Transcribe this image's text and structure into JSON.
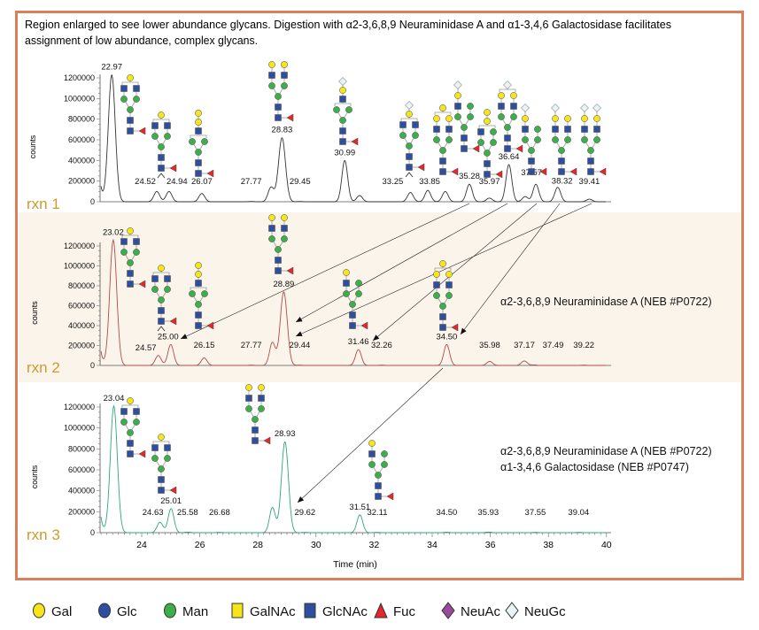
{
  "caption": {
    "line1": "Region enlarged to see lower abundance glycans. Digestion with α2-3,6,8,9 Neuraminidase A and α1-3,4,6 Galactosidase facilitates",
    "line2": "assignment of low abundance, complex glycans."
  },
  "colors": {
    "frame": "#d9805a",
    "rxn_label": "#cf9a2c",
    "panel2_bg": "#faf4ea"
  },
  "symbols": {
    "Gal": {
      "shape": "circle",
      "color": "#f7e51a"
    },
    "Glc": {
      "shape": "circle",
      "color": "#2e4ea0"
    },
    "Man": {
      "shape": "circle",
      "color": "#3cae4a"
    },
    "GalNAc": {
      "shape": "square",
      "color": "#f7e51a"
    },
    "GlcNAc": {
      "shape": "square",
      "color": "#2e4ea0"
    },
    "Fuc": {
      "shape": "triangle",
      "color": "#e8262a"
    },
    "NeuAc": {
      "shape": "diamond",
      "color": "#9a4a9a"
    },
    "NeuGc": {
      "shape": "diamond",
      "color": "#e8f4f6"
    }
  },
  "legend": [
    {
      "label": "Gal",
      "symbol": "Gal"
    },
    {
      "label": "Glc",
      "symbol": "Glc"
    },
    {
      "label": "Man",
      "symbol": "Man"
    },
    {
      "label": "GalNAc",
      "symbol": "GalNAc"
    },
    {
      "label": "GlcNAc",
      "symbol": "GlcNAc"
    },
    {
      "label": "Fuc",
      "symbol": "Fuc"
    },
    {
      "label": "NeuAc",
      "symbol": "NeuAc"
    },
    {
      "label": "NeuGc",
      "symbol": "NeuGc"
    }
  ],
  "xaxis": {
    "label": "Time (min)",
    "ticks": [
      "24",
      "26",
      "28",
      "30",
      "32",
      "34",
      "36",
      "38",
      "40"
    ]
  },
  "chart_data": [
    {
      "type": "line",
      "panel": "rxn 1",
      "color": "#333333",
      "ylabel": "counts",
      "ylim": [
        0,
        1200000
      ],
      "xlim": [
        22.6,
        40
      ],
      "yticks": [
        "0",
        "200000",
        "400000",
        "600000",
        "800000",
        "1000000",
        "1200000"
      ],
      "annotation": [],
      "peaks": [
        {
          "rt": 22.97,
          "label": "22.97",
          "height": 1230000
        },
        {
          "rt": 24.52,
          "label": "24.52",
          "height": 100000
        },
        {
          "rt": 24.94,
          "label": "24.94",
          "height": 100000
        },
        {
          "rt": 26.07,
          "label": "26.07",
          "height": 80000
        },
        {
          "rt": 27.77,
          "label": "27.77",
          "height": 3000
        },
        {
          "rt": 28.45,
          "label": null,
          "height": 140000
        },
        {
          "rt": 28.83,
          "label": "28.83",
          "height": 620000
        },
        {
          "rt": 29.45,
          "label": "29.45",
          "height": 3000
        },
        {
          "rt": 30.99,
          "label": "30.99",
          "height": 400000
        },
        {
          "rt": 31.5,
          "label": null,
          "height": 60000
        },
        {
          "rt": 33.25,
          "label": "33.25",
          "height": 90000
        },
        {
          "rt": 33.85,
          "label": "33.85",
          "height": 110000
        },
        {
          "rt": 34.45,
          "label": null,
          "height": 100000
        },
        {
          "rt": 35.28,
          "label": "35.28",
          "height": 170000
        },
        {
          "rt": 35.97,
          "label": "35.97",
          "height": 35000
        },
        {
          "rt": 36.64,
          "label": "36.64",
          "height": 360000
        },
        {
          "rt": 37.2,
          "label": null,
          "height": 50000
        },
        {
          "rt": 37.57,
          "label": "37.57",
          "height": 170000
        },
        {
          "rt": 38.32,
          "label": "38.32",
          "height": 140000
        },
        {
          "rt": 39.41,
          "label": "39.41",
          "height": 25000
        }
      ],
      "glycans": [
        {
          "peak": "22.97",
          "core_fuc": true,
          "antennae": [
            [
              "GlcNAc"
            ],
            [
              "GlcNAc"
            ]
          ],
          "floating": [
            "Gal"
          ]
        },
        {
          "peak": "24.94",
          "core_fuc": true,
          "antennae": [
            [
              "GlcNAc"
            ],
            [
              "GlcNAc"
            ]
          ],
          "floating": [
            "Gal"
          ],
          "isomer": true
        },
        {
          "peak": "26.07",
          "core_fuc": true,
          "antennae": [
            [],
            []
          ],
          "floating": [
            "GlcNAc",
            "Gal",
            "Gal"
          ]
        },
        {
          "peak": "28.83",
          "core_fuc": true,
          "antennae": [
            [
              "GlcNAc",
              "Gal"
            ],
            [
              "GlcNAc",
              "Gal"
            ]
          ],
          "floating": []
        },
        {
          "peak": "30.99",
          "core_fuc": true,
          "antennae": [
            [],
            []
          ],
          "floating": [
            "GlcNAc",
            "Gal",
            "NeuGc"
          ]
        },
        {
          "peak": "33.25",
          "core_fuc": true,
          "antennae": [
            [
              "GlcNAc"
            ],
            [
              "GlcNAc"
            ]
          ],
          "floating": [
            "Gal",
            "NeuGc"
          ],
          "isomer": true
        },
        {
          "peak": "33.85",
          "core_fuc": true,
          "antennae": [
            [
              "GlcNAc",
              "Gal"
            ],
            [
              "GlcNAc",
              "Gal"
            ]
          ],
          "floating": [
            "Gal"
          ]
        },
        {
          "peak": "35.28",
          "core_fuc": true,
          "antennae": [
            [
              "GlcNAc",
              "Gal",
              "NeuGc"
            ],
            [
              "Man"
            ]
          ],
          "floating": []
        },
        {
          "peak": "35.97",
          "core_fuc": true,
          "antennae": [
            [
              "GlcNAc"
            ],
            [
              "Man"
            ]
          ],
          "floating": [
            "Gal",
            "Gal"
          ]
        },
        {
          "peak": "36.64",
          "core_fuc": true,
          "antennae": [
            [
              "GlcNAc",
              "Gal"
            ],
            [
              "GlcNAc",
              "Gal"
            ]
          ],
          "floating": [
            "NeuGc"
          ]
        },
        {
          "peak": "37.57",
          "core_fuc": true,
          "antennae": [
            [
              "GlcNAc",
              "Gal",
              "NeuGc"
            ],
            [
              "Man"
            ]
          ],
          "floating": []
        },
        {
          "peak": "38.32",
          "core_fuc": true,
          "antennae": [
            [
              "GlcNAc",
              "Gal",
              "NeuGc"
            ],
            [
              "GlcNAc",
              "Gal"
            ]
          ],
          "floating": []
        },
        {
          "peak": "39.41",
          "core_fuc": true,
          "antennae": [
            [
              "GlcNAc",
              "Gal",
              "NeuGc"
            ],
            [
              "GlcNAc",
              "Gal",
              "NeuGc"
            ]
          ],
          "floating": []
        }
      ]
    },
    {
      "type": "line",
      "panel": "rxn 2",
      "color": "#b54a4a",
      "ylabel": "counts",
      "ylim": [
        0,
        1200000
      ],
      "xlim": [
        22.6,
        40
      ],
      "yticks": [
        "0",
        "200000",
        "400000",
        "600000",
        "800000",
        "1000000",
        "1200000"
      ],
      "annotation": [
        "α2-3,6,8,9 Neuraminidase A (NEB #P0722)"
      ],
      "peaks": [
        {
          "rt": 23.02,
          "label": "23.02",
          "height": 1260000
        },
        {
          "rt": 24.57,
          "label": "24.57",
          "height": 100000
        },
        {
          "rt": 25.0,
          "label": "25.00",
          "height": 210000
        },
        {
          "rt": 26.15,
          "label": "26.15",
          "height": 75000
        },
        {
          "rt": 27.77,
          "label": "27.77",
          "height": 3000
        },
        {
          "rt": 28.5,
          "label": null,
          "height": 230000
        },
        {
          "rt": 28.89,
          "label": "28.89",
          "height": 740000
        },
        {
          "rt": 29.44,
          "label": "29.44",
          "height": 3000
        },
        {
          "rt": 31.46,
          "label": "31.46",
          "height": 160000
        },
        {
          "rt": 32.26,
          "label": "32.26",
          "height": 3000
        },
        {
          "rt": 34.5,
          "label": "34.50",
          "height": 210000
        },
        {
          "rt": 35.98,
          "label": "35.98",
          "height": 40000
        },
        {
          "rt": 37.17,
          "label": "37.17",
          "height": 45000
        },
        {
          "rt": 37.49,
          "label": "37.49",
          "height": 5000
        },
        {
          "rt": 39.22,
          "label": "39.22",
          "height": 3000
        }
      ],
      "glycans": [
        {
          "peak": "23.02",
          "core_fuc": true,
          "antennae": [
            [
              "GlcNAc"
            ],
            [
              "GlcNAc"
            ]
          ],
          "floating": [
            "Gal"
          ]
        },
        {
          "peak": "25.00",
          "core_fuc": true,
          "antennae": [
            [
              "GlcNAc"
            ],
            [
              "GlcNAc"
            ]
          ],
          "floating": [
            "Gal"
          ],
          "isomer": true
        },
        {
          "peak": "26.15",
          "core_fuc": true,
          "antennae": [
            [],
            []
          ],
          "floating": [
            "GlcNAc",
            "Gal",
            "Gal"
          ]
        },
        {
          "peak": "28.89",
          "core_fuc": true,
          "antennae": [
            [
              "GlcNAc",
              "Gal"
            ],
            [
              "GlcNAc",
              "Gal"
            ]
          ],
          "floating": []
        },
        {
          "peak": "31.46",
          "core_fuc": true,
          "antennae": [
            [
              "GlcNAc",
              "Gal"
            ],
            [
              "Man"
            ]
          ],
          "floating": []
        },
        {
          "peak": "34.50",
          "core_fuc": true,
          "antennae": [
            [
              "GlcNAc",
              "Gal"
            ],
            [
              "GlcNAc",
              "Gal"
            ]
          ],
          "floating": [
            "Gal"
          ]
        }
      ]
    },
    {
      "type": "line",
      "panel": "rxn 3",
      "color": "#2fa57c",
      "ylabel": "counts",
      "ylim": [
        0,
        1200000
      ],
      "xlim": [
        22.6,
        40
      ],
      "yticks": [
        "0",
        "200000",
        "400000",
        "600000",
        "800000",
        "1000000",
        "1200000"
      ],
      "annotation": [
        "α2-3,6,8,9 Neuraminidase A (NEB #P0722)",
        "α1-3,4,6 Galactosidase (NEB #P0747)"
      ],
      "peaks": [
        {
          "rt": 23.04,
          "label": "23.04",
          "height": 1210000
        },
        {
          "rt": 24.63,
          "label": "24.63",
          "height": 100000
        },
        {
          "rt": 25.01,
          "label": "25.01",
          "height": 230000
        },
        {
          "rt": 25.58,
          "label": "25.58",
          "height": 5000
        },
        {
          "rt": 26.68,
          "label": "26.68",
          "height": 3000
        },
        {
          "rt": 28.5,
          "label": null,
          "height": 240000
        },
        {
          "rt": 28.93,
          "label": "28.93",
          "height": 870000
        },
        {
          "rt": 29.62,
          "label": "29.62",
          "height": 3000
        },
        {
          "rt": 31.51,
          "label": "31.51",
          "height": 170000
        },
        {
          "rt": 32.11,
          "label": "32.11",
          "height": 3000
        },
        {
          "rt": 34.5,
          "label": "34.50",
          "height": 4000
        },
        {
          "rt": 35.93,
          "label": "35.93",
          "height": 6000
        },
        {
          "rt": 37.55,
          "label": "37.55",
          "height": 3000
        },
        {
          "rt": 39.04,
          "label": "39.04",
          "height": 3000
        }
      ],
      "glycans": [
        {
          "peak": "23.04",
          "core_fuc": true,
          "antennae": [
            [
              "GlcNAc"
            ],
            [
              "GlcNAc"
            ]
          ],
          "floating": [
            "Gal"
          ]
        },
        {
          "peak": "25.01",
          "core_fuc": true,
          "antennae": [
            [
              "GlcNAc"
            ],
            [
              "GlcNAc"
            ]
          ],
          "floating": [
            "Gal"
          ]
        },
        {
          "peak": "28.93",
          "core_fuc": true,
          "antennae": [
            [
              "GlcNAc",
              "Gal"
            ],
            [
              "GlcNAc",
              "Gal"
            ]
          ],
          "floating": []
        },
        {
          "peak": "31.51",
          "core_fuc": true,
          "antennae": [
            [
              "GlcNAc",
              "Gal"
            ],
            [
              "Man"
            ]
          ],
          "floating": []
        }
      ]
    }
  ]
}
